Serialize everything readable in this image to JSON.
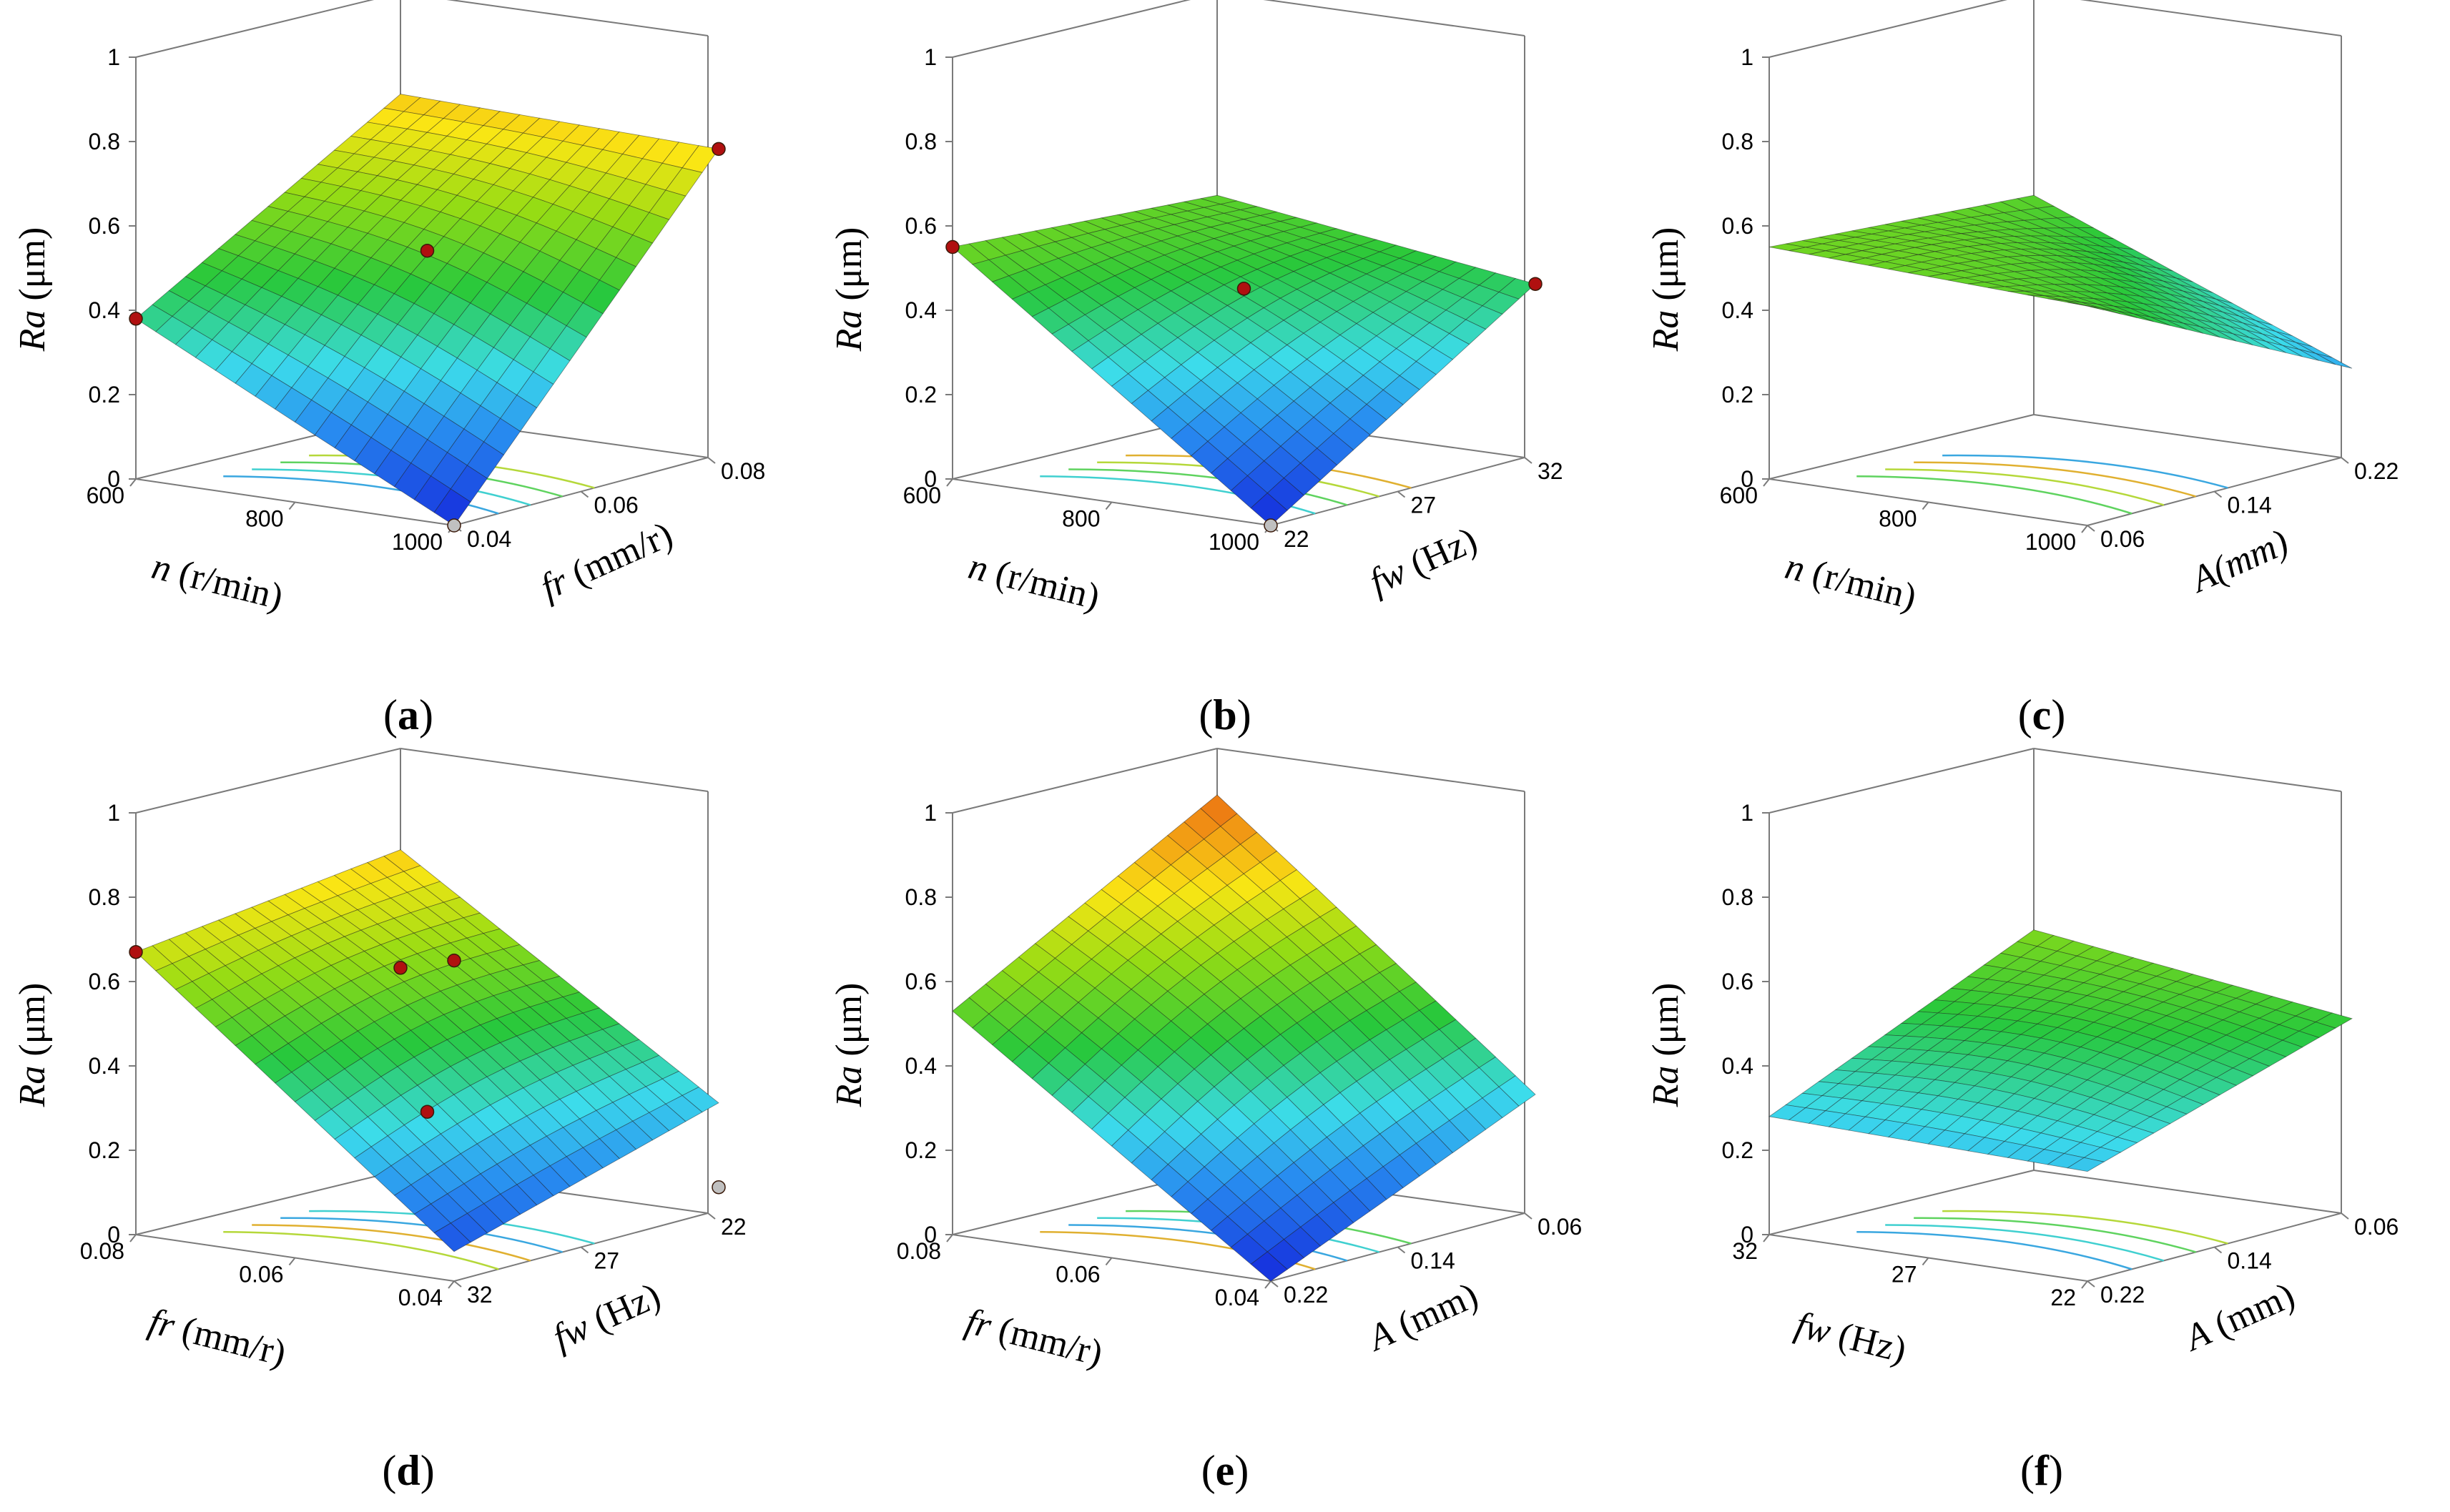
{
  "figure": {
    "panels": [
      {
        "id": "a",
        "caption": "a",
        "zlabel": "Ra (μm)",
        "zticks": [
          "0",
          "0.2",
          "0.4",
          "0.6",
          "0.8",
          "1"
        ],
        "xlabel": "n (r/min)",
        "xticks": [
          "600",
          "800",
          "1000"
        ],
        "ylabel": "fr (mm/r)",
        "yticks": [
          "0.04",
          "0.06",
          "0.08"
        ]
      },
      {
        "id": "b",
        "caption": "b",
        "zlabel": "Ra (μm)",
        "zticks": [
          "0",
          "0.2",
          "0.4",
          "0.6",
          "0.8",
          "1"
        ],
        "xlabel": "n (r/min)",
        "xticks": [
          "600",
          "800",
          "1000"
        ],
        "ylabel": "fw (Hz)",
        "yticks": [
          "22",
          "27",
          "32"
        ]
      },
      {
        "id": "c",
        "caption": "c",
        "zlabel": "Ra (μm)",
        "zticks": [
          "0",
          "0.2",
          "0.4",
          "0.6",
          "0.8",
          "1"
        ],
        "xlabel": "n (r/min)",
        "xticks": [
          "600",
          "800",
          "1000"
        ],
        "ylabel": "A(mm)",
        "yticks": [
          "0.06",
          "0.14",
          "0.22"
        ]
      },
      {
        "id": "d",
        "caption": "d",
        "zlabel": "Ra (μm)",
        "zticks": [
          "0",
          "0.2",
          "0.4",
          "0.6",
          "0.8",
          "1"
        ],
        "xlabel": "fr (mm/r)",
        "xticks": [
          "0.08",
          "0.06",
          "0.04"
        ],
        "ylabel": "fw (Hz)",
        "yticks": [
          "32",
          "27",
          "22"
        ]
      },
      {
        "id": "e",
        "caption": "e",
        "zlabel": "Ra (μm)",
        "zticks": [
          "0",
          "0.2",
          "0.4",
          "0.6",
          "0.8",
          "1"
        ],
        "xlabel": "fr (mm/r)",
        "xticks": [
          "0.08",
          "0.06",
          "0.04"
        ],
        "ylabel": "A (mm)",
        "yticks": [
          "0.22",
          "0.14",
          "0.06"
        ]
      },
      {
        "id": "f",
        "caption": "f",
        "zlabel": "Ra (μm)",
        "zticks": [
          "0",
          "0.2",
          "0.4",
          "0.6",
          "0.8",
          "1"
        ],
        "xlabel": "fw (Hz)",
        "xticks": [
          "32",
          "27",
          "22"
        ],
        "ylabel": "A (mm)",
        "yticks": [
          "0.22",
          "0.14",
          "0.06"
        ]
      }
    ]
  },
  "chart_data": [
    {
      "type": "surface",
      "panel": "a",
      "x": {
        "name": "n",
        "unit": "r/min",
        "range": [
          600,
          1000
        ]
      },
      "y": {
        "name": "fr",
        "unit": "mm/r",
        "range": [
          0.04,
          0.08
        ]
      },
      "z": {
        "name": "Ra",
        "unit": "μm",
        "range": [
          0,
          1
        ]
      },
      "corners": {
        "x_left_near": 0.38,
        "x_right_near": 0.0,
        "x_right_far": 0.74,
        "x_left_far": 0.76
      },
      "points": [
        {
          "z": 0.38
        },
        {
          "z": 0.0
        },
        {
          "z": 0.74
        },
        {
          "z": 0.52
        }
      ]
    },
    {
      "type": "surface",
      "panel": "b",
      "x": {
        "name": "n",
        "unit": "r/min",
        "range": [
          600,
          1000
        ]
      },
      "y": {
        "name": "fw",
        "unit": "Hz",
        "range": [
          22,
          32
        ]
      },
      "z": {
        "name": "Ra",
        "unit": "μm",
        "range": [
          0,
          1
        ]
      },
      "corners": {
        "x_left_near": 0.55,
        "x_right_near": 0.0,
        "x_right_far": 0.42,
        "x_left_far": 0.52
      },
      "points": [
        {
          "z": 0.55
        },
        {
          "z": 0.0
        },
        {
          "z": 0.42
        },
        {
          "z": 0.43
        }
      ]
    },
    {
      "type": "surface",
      "panel": "c",
      "x": {
        "name": "n",
        "unit": "r/min",
        "range": [
          600,
          1000
        ]
      },
      "y": {
        "name": "A",
        "unit": "mm",
        "range": [
          0.06,
          0.22
        ]
      },
      "z": {
        "name": "Ra",
        "unit": "μm",
        "range": [
          0,
          1
        ]
      },
      "corners": {
        "x_left_near": 0.55,
        "x_right_near": 0.52,
        "x_right_far": 0.22,
        "x_left_far": 0.52
      },
      "points": []
    },
    {
      "type": "surface",
      "panel": "d",
      "x": {
        "name": "fr",
        "unit": "mm/r",
        "range": [
          0.08,
          0.04
        ]
      },
      "y": {
        "name": "fw",
        "unit": "Hz",
        "range": [
          32,
          22
        ]
      },
      "z": {
        "name": "Ra",
        "unit": "μm",
        "range": [
          0,
          1
        ]
      },
      "corners": {
        "x_left_near": 0.67,
        "x_right_near": 0.07,
        "x_right_far": 0.27,
        "x_left_far": 0.76
      },
      "points": [
        {
          "z": 0.67
        },
        {
          "z": 0.76
        },
        {
          "z": 0.07
        },
        {
          "z": 0.27
        },
        {
          "z": 0.48
        }
      ]
    },
    {
      "type": "surface",
      "panel": "e",
      "x": {
        "name": "fr",
        "unit": "mm/r",
        "range": [
          0.08,
          0.04
        ]
      },
      "y": {
        "name": "A",
        "unit": "mm",
        "range": [
          0.22,
          0.06
        ]
      },
      "z": {
        "name": "Ra",
        "unit": "μm",
        "range": [
          0,
          1
        ]
      },
      "corners": {
        "x_left_near": 0.53,
        "x_right_near": 0.0,
        "x_right_far": 0.29,
        "x_left_far": 0.89
      },
      "points": []
    },
    {
      "type": "surface",
      "panel": "f",
      "x": {
        "name": "fw",
        "unit": "Hz",
        "range": [
          32,
          22
        ]
      },
      "y": {
        "name": "A",
        "unit": "mm",
        "range": [
          0.22,
          0.06
        ]
      },
      "z": {
        "name": "Ra",
        "unit": "μm",
        "range": [
          0,
          1
        ]
      },
      "corners": {
        "x_left_near": 0.28,
        "x_right_near": 0.26,
        "x_right_far": 0.47,
        "x_left_far": 0.57
      },
      "points": []
    }
  ]
}
